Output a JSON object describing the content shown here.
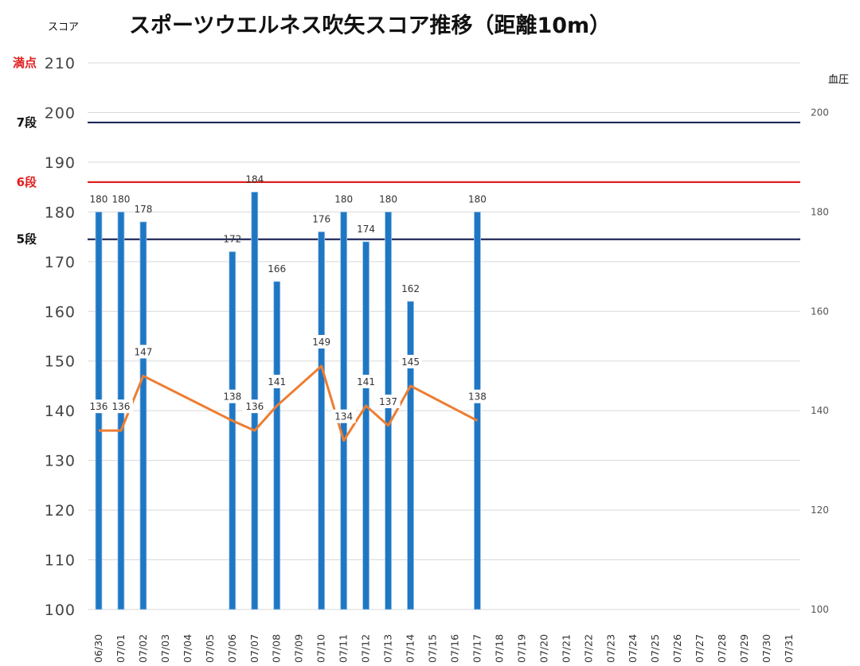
{
  "chart_data": {
    "type": "bar",
    "title": "スポーツウエルネス吹矢スコア推移（距離10m）",
    "ylabel": "スコア",
    "y2label": "血圧",
    "ylim": [
      100,
      210
    ],
    "y2lim": [
      100,
      210
    ],
    "yticks": [
      "100",
      "110",
      "120",
      "130",
      "140",
      "150",
      "160",
      "170",
      "180",
      "190",
      "200",
      "210"
    ],
    "y2ticks": [
      "100",
      "120",
      "140",
      "160",
      "180",
      "200"
    ],
    "categories": [
      "06/30",
      "07/01",
      "07/02",
      "07/03",
      "07/04",
      "07/05",
      "07/06",
      "07/07",
      "07/08",
      "07/09",
      "07/10",
      "07/11",
      "07/12",
      "07/13",
      "07/14",
      "07/15",
      "07/16",
      "07/17",
      "07/18",
      "07/19",
      "07/20",
      "07/21",
      "07/22",
      "07/23",
      "07/24",
      "07/25",
      "07/26",
      "07/27",
      "07/28",
      "07/29",
      "07/30",
      "07/31"
    ],
    "series": [
      {
        "kind": "bar",
        "axis": "left",
        "color": "#1f77c4",
        "values": [
          180,
          180,
          178,
          null,
          null,
          null,
          172,
          184,
          166,
          null,
          176,
          180,
          174,
          180,
          162,
          null,
          null,
          180,
          null,
          null,
          null,
          null,
          null,
          null,
          null,
          null,
          null,
          null,
          null,
          null,
          null,
          null
        ]
      },
      {
        "kind": "line",
        "axis": "right",
        "color": "#ed7d31",
        "values": [
          136,
          136,
          147,
          null,
          null,
          null,
          138,
          136,
          141,
          null,
          149,
          134,
          141,
          137,
          145,
          null,
          null,
          138,
          null,
          null,
          null,
          null,
          null,
          null,
          null,
          null,
          null,
          null,
          null,
          null,
          null,
          null
        ]
      }
    ],
    "reference_lines": [
      {
        "label": "満点",
        "value": 210,
        "color": "#e02020",
        "line_color": "#d9d9d9"
      },
      {
        "label": "7段",
        "value": 198,
        "color": "#111111",
        "line_color": "#1f2a5a"
      },
      {
        "label": "6段",
        "value": 186,
        "color": "#e02020",
        "line_color": "#e02020"
      },
      {
        "label": "5段",
        "value": 174.5,
        "color": "#111111",
        "line_color": "#1f2a5a"
      }
    ],
    "grid": true,
    "legend": "none"
  }
}
